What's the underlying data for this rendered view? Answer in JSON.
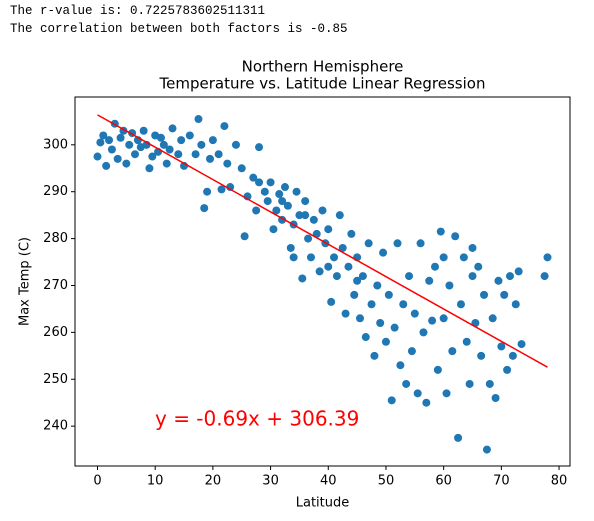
{
  "console": [
    "The r-value is: 0.7225783602511311",
    "The correlation between both factors is -0.85"
  ],
  "chart_data": {
    "type": "scatter",
    "title": [
      "Northern Hemisphere",
      "Temperature vs. Latitude Linear Regression"
    ],
    "xlabel": "Latitude",
    "ylabel": "Max Temp (C)",
    "annotation": "y = -0.69x + 306.39",
    "annotation_color": "#ff0000",
    "xlim": [
      -3.9,
      81.9
    ],
    "ylim": [
      231.5,
      310.2
    ],
    "xticks": [
      0,
      10,
      20,
      30,
      40,
      50,
      60,
      70,
      80
    ],
    "yticks": [
      240,
      250,
      260,
      270,
      280,
      290,
      300
    ],
    "series": [
      {
        "color": "#1f77b4",
        "x": [
          0,
          0.5,
          1,
          1.5,
          2,
          2.5,
          3,
          3.5,
          4,
          4.5,
          5,
          5.5,
          6,
          6.5,
          7,
          7.5,
          8,
          8.5,
          9,
          9.5,
          10,
          10.5,
          11,
          11.5,
          12,
          12.5,
          13,
          14,
          14.5,
          15,
          16,
          17,
          17.5,
          18,
          18.5,
          19,
          19.5,
          20,
          21,
          21.5,
          22,
          22.5,
          23,
          24,
          25,
          25.5,
          26,
          27,
          27.5,
          28,
          29,
          29.5,
          30,
          30.5,
          31,
          31.5,
          32,
          32.5,
          33,
          33.5,
          34,
          34.5,
          35,
          35.5,
          36,
          36.5,
          37,
          37.5,
          38,
          38.5,
          39,
          39.5,
          40,
          40.5,
          41,
          41.5,
          42,
          42.5,
          43,
          43.5,
          44,
          44.5,
          45,
          45.5,
          46,
          46.5,
          47,
          47.5,
          48,
          48.5,
          49,
          49.5,
          50,
          50.5,
          51,
          51.5,
          52,
          52.5,
          53,
          53.5,
          54,
          54.5,
          55,
          55.5,
          56,
          56.5,
          57,
          57.5,
          58,
          58.5,
          59,
          59.5,
          60,
          60.5,
          61,
          61.5,
          62,
          62.5,
          63,
          63.5,
          64,
          64.5,
          65,
          65.5,
          66,
          66.5,
          67,
          67.5,
          68,
          68.5,
          69,
          69.5,
          70,
          70.5,
          71,
          71.5,
          72,
          72.5,
          73,
          73.5,
          77.5,
          78,
          60,
          65,
          45,
          40,
          28,
          32,
          36,
          34
        ],
        "values": [
          297.5,
          300.5,
          302,
          295.5,
          301,
          299,
          304.5,
          297,
          301.5,
          303,
          296,
          300,
          302.5,
          298,
          301,
          299.5,
          303,
          300,
          295,
          297.5,
          302,
          298.5,
          301.5,
          300,
          296,
          299,
          303.5,
          298,
          301,
          295.5,
          302,
          298,
          305.5,
          300,
          286.5,
          290,
          297,
          301,
          298,
          290.5,
          304,
          296,
          291,
          300,
          295,
          280.5,
          289,
          293,
          286,
          299.5,
          290,
          288,
          292,
          282,
          286,
          289.5,
          284,
          291,
          287,
          278,
          283,
          290,
          285,
          271.5,
          288,
          280,
          276,
          284,
          281,
          273,
          286,
          279,
          282,
          266.5,
          276,
          272,
          285,
          278,
          264,
          274,
          281,
          268,
          276,
          263,
          272,
          259,
          279,
          266,
          255,
          270,
          262,
          277,
          258,
          268,
          245.5,
          261,
          279,
          253,
          266,
          249,
          272,
          256,
          264,
          247,
          279,
          260,
          245,
          271,
          262.5,
          274,
          252,
          281.5,
          263,
          247,
          270,
          256,
          280.5,
          237.5,
          266,
          276,
          258,
          249,
          272,
          262,
          274,
          255,
          268,
          235,
          249,
          263,
          246,
          271,
          257,
          268,
          252,
          272,
          255,
          266,
          273,
          257.5,
          272,
          276,
          276,
          278,
          271,
          274,
          292,
          288,
          285,
          276
        ]
      }
    ],
    "regression": {
      "color": "#ff0000",
      "x": [
        0,
        78
      ],
      "y": [
        306.39,
        252.57
      ]
    }
  }
}
